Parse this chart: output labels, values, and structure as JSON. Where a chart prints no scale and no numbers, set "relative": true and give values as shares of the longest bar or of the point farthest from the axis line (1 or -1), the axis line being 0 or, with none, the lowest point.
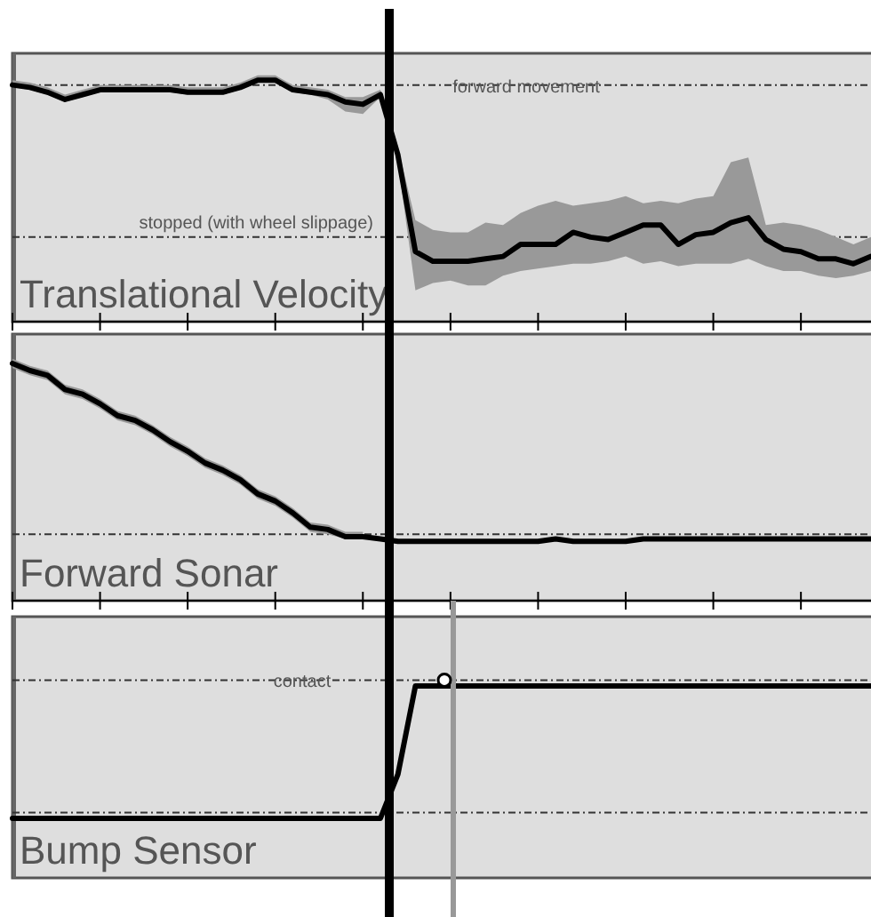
{
  "chart_data": [
    {
      "type": "line",
      "title": "Translational Velocity",
      "relative": true,
      "categories": [
        null,
        null,
        null,
        null,
        null,
        null,
        null,
        null,
        null,
        null,
        null,
        null,
        null,
        null,
        null,
        null,
        null,
        null,
        null,
        null,
        null,
        null,
        null,
        null,
        null,
        null,
        null,
        null,
        null,
        null,
        null,
        null,
        null,
        null,
        null,
        null,
        null,
        null,
        null,
        null,
        null,
        null,
        null,
        null,
        null,
        null,
        null,
        null,
        null,
        null
      ],
      "series": [
        {
          "color": "#000000",
          "values": [
            0.98,
            0.97,
            0.95,
            0.92,
            0.94,
            0.96,
            0.96,
            0.96,
            0.96,
            0.96,
            0.95,
            0.95,
            0.95,
            0.97,
            1.0,
            1.0,
            0.96,
            0.95,
            0.94,
            0.91,
            0.9,
            0.94,
            0.69,
            0.29,
            0.25,
            0.25,
            0.25,
            0.26,
            0.27,
            0.32,
            0.32,
            0.32,
            0.37,
            0.35,
            0.34,
            0.37,
            0.4,
            0.4,
            0.32,
            0.36,
            0.37,
            0.41,
            0.43,
            0.34,
            0.3,
            0.29,
            0.26,
            0.26,
            0.24,
            0.27
          ],
          "upper": [
            1.0,
            0.99,
            0.97,
            0.94,
            0.96,
            0.98,
            0.98,
            0.98,
            0.98,
            0.98,
            0.97,
            0.97,
            0.97,
            0.99,
            1.02,
            1.02,
            0.98,
            0.97,
            0.96,
            0.93,
            0.93,
            0.96,
            0.72,
            0.42,
            0.38,
            0.37,
            0.37,
            0.41,
            0.4,
            0.45,
            0.48,
            0.5,
            0.48,
            0.49,
            0.5,
            0.52,
            0.49,
            0.5,
            0.49,
            0.51,
            0.52,
            0.66,
            0.68,
            0.4,
            0.41,
            0.4,
            0.38,
            0.35,
            0.32,
            0.35
          ],
          "lower": [
            0.97,
            0.96,
            0.94,
            0.91,
            0.93,
            0.95,
            0.95,
            0.95,
            0.95,
            0.95,
            0.94,
            0.94,
            0.94,
            0.96,
            0.99,
            0.99,
            0.95,
            0.94,
            0.92,
            0.87,
            0.86,
            0.93,
            0.66,
            0.13,
            0.16,
            0.17,
            0.15,
            0.15,
            0.19,
            0.21,
            0.22,
            0.23,
            0.24,
            0.24,
            0.25,
            0.27,
            0.24,
            0.25,
            0.23,
            0.24,
            0.24,
            0.24,
            0.26,
            0.23,
            0.21,
            0.21,
            0.19,
            0.18,
            0.19,
            0.21
          ]
        }
      ],
      "ref_lines": [
        {
          "axis": "y",
          "value": 0.98,
          "label": "forward movement",
          "line_style": "dashed",
          "color": "#333333"
        },
        {
          "axis": "y",
          "value": 0.35,
          "label": "stopped (with wheel slippage)",
          "line_style": "dashed",
          "color": "#333333"
        }
      ]
    },
    {
      "type": "line",
      "title": "Forward Sonar",
      "relative": true,
      "categories": [
        null,
        null,
        null,
        null,
        null,
        null,
        null,
        null,
        null,
        null,
        null,
        null,
        null,
        null,
        null,
        null,
        null,
        null,
        null,
        null,
        null,
        null,
        null,
        null,
        null,
        null,
        null,
        null,
        null,
        null,
        null,
        null,
        null,
        null,
        null,
        null,
        null,
        null,
        null,
        null,
        null,
        null,
        null,
        null,
        null,
        null,
        null,
        null,
        null,
        null
      ],
      "series": [
        {
          "color": "#000000",
          "values": [
            1.0,
            0.97,
            0.95,
            0.89,
            0.87,
            0.83,
            0.78,
            0.76,
            0.72,
            0.67,
            0.63,
            0.58,
            0.55,
            0.51,
            0.45,
            0.42,
            0.37,
            0.31,
            0.3,
            0.27,
            0.27,
            0.26,
            0.25,
            0.25,
            0.25,
            0.25,
            0.25,
            0.25,
            0.25,
            0.25,
            0.25,
            0.26,
            0.25,
            0.25,
            0.25,
            0.25,
            0.26,
            0.26,
            0.26,
            0.26,
            0.26,
            0.26,
            0.26,
            0.26,
            0.26,
            0.26,
            0.26,
            0.26,
            0.26,
            0.26
          ],
          "upper": [
            1.02,
            0.99,
            0.97,
            0.91,
            0.89,
            0.85,
            0.8,
            0.78,
            0.74,
            0.69,
            0.65,
            0.6,
            0.57,
            0.53,
            0.47,
            0.44,
            0.39,
            0.33,
            0.32,
            0.29,
            0.29,
            null,
            null,
            null,
            null,
            null,
            null,
            null,
            null,
            null,
            null,
            null,
            null,
            null,
            null,
            null,
            null,
            null,
            null,
            null,
            null,
            null,
            null,
            null,
            null,
            null,
            null,
            null,
            null,
            null
          ],
          "lower": [
            0.98,
            0.95,
            0.93,
            0.87,
            0.85,
            0.81,
            0.76,
            0.74,
            0.7,
            0.65,
            0.61,
            0.56,
            0.53,
            0.49,
            0.43,
            0.4,
            0.35,
            0.29,
            0.28,
            0.26,
            0.26,
            null,
            null,
            null,
            null,
            null,
            null,
            null,
            null,
            null,
            null,
            null,
            null,
            null,
            null,
            null,
            null,
            null,
            null,
            null,
            null,
            null,
            null,
            null,
            null,
            null,
            null,
            null,
            null,
            null
          ]
        }
      ],
      "ref_lines": [
        {
          "axis": "y",
          "value": 0.28,
          "label": null,
          "line_style": "dashed",
          "color": "#333333"
        }
      ]
    },
    {
      "type": "line",
      "title": "Bump Sensor",
      "relative": true,
      "categories": [
        null,
        null,
        null,
        null,
        null,
        null,
        null,
        null,
        null,
        null,
        null,
        null,
        null,
        null,
        null,
        null,
        null,
        null,
        null,
        null,
        null,
        null,
        null,
        null,
        null,
        null,
        null,
        null,
        null,
        null,
        null,
        null,
        null,
        null,
        null,
        null,
        null,
        null,
        null,
        null,
        null,
        null,
        null,
        null,
        null,
        null,
        null,
        null,
        null,
        null
      ],
      "series": [
        {
          "color": "#000000",
          "values": [
            0.31,
            0.31,
            0.31,
            0.31,
            0.31,
            0.31,
            0.31,
            0.31,
            0.31,
            0.31,
            0.31,
            0.31,
            0.31,
            0.31,
            0.31,
            0.31,
            0.31,
            0.31,
            0.31,
            0.31,
            0.31,
            0.31,
            0.54,
            1,
            1,
            1,
            1,
            1,
            1,
            1,
            1,
            1,
            1,
            1,
            1,
            1,
            1,
            1,
            1,
            1,
            1,
            1,
            1,
            1,
            1,
            1,
            1,
            1,
            1,
            1
          ]
        }
      ],
      "ref_lines": [
        {
          "axis": "y",
          "value": 1.03,
          "label": "contact",
          "line_style": "dashed",
          "color": "#333333"
        },
        {
          "axis": "y",
          "value": 0.34,
          "label": null,
          "line_style": "dashed",
          "color": "#333333"
        }
      ]
    }
  ]
}
